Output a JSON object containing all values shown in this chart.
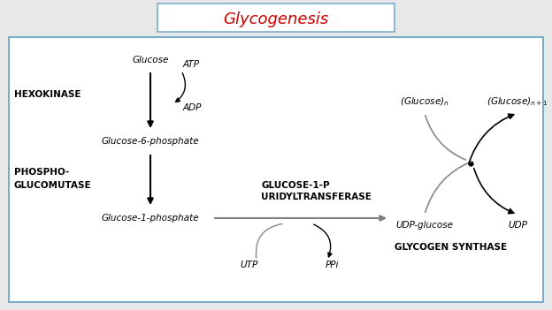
{
  "title": "Glycogenesis",
  "title_color": "#cc0000",
  "title_fontsize": 13,
  "bg_color": "#ffffff",
  "border_color": "#7aadcc",
  "fig_bg": "#e8e8e8",
  "labels": {
    "glucose": "Glucose",
    "atp": "ATP",
    "adp": "ADP",
    "g6p": "Glucose-6-phosphate",
    "hexokinase": "HEXOKINASE",
    "phospho1": "PHOSPHO-",
    "phospho2": "GLUCOMUTASE",
    "g1p_label": "Glucose-1-phosphate",
    "glucose1p_1": "GLUCOSE-1-P",
    "glucose1p_2": "URIDYLTRANSFERASE",
    "utp": "UTP",
    "ppi": "PPi",
    "udpglucose": "UDP-glucose",
    "udp": "UDP",
    "glucose_n": "(Glucose)$_n$",
    "glucose_n1": "(Glucose)$_{n+1}$",
    "glycogen_synthase": "GLYCOGEN SYNTHASE"
  },
  "fn": 7.5,
  "fb": 7.5
}
